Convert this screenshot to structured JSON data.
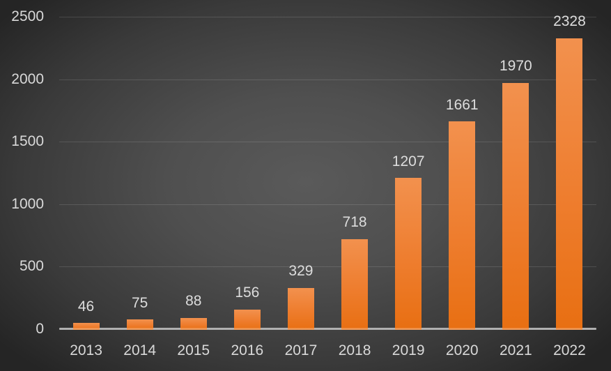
{
  "chart_data": {
    "type": "bar",
    "title": "",
    "xlabel": "",
    "ylabel": "",
    "categories": [
      "2013",
      "2014",
      "2015",
      "2016",
      "2017",
      "2018",
      "2019",
      "2020",
      "2021",
      "2022"
    ],
    "values": [
      46,
      75,
      88,
      156,
      329,
      718,
      1207,
      1661,
      1970,
      2328
    ],
    "ylim": [
      0,
      2500
    ],
    "yticks": [
      0,
      500,
      1000,
      1500,
      2000,
      2500
    ],
    "grid": true,
    "legend": false,
    "bar_color_top": "#f2914e",
    "bar_color_bottom": "#e86f12",
    "background": "dark-gray-radial-gradient",
    "text_color": "#d9d9d9"
  }
}
